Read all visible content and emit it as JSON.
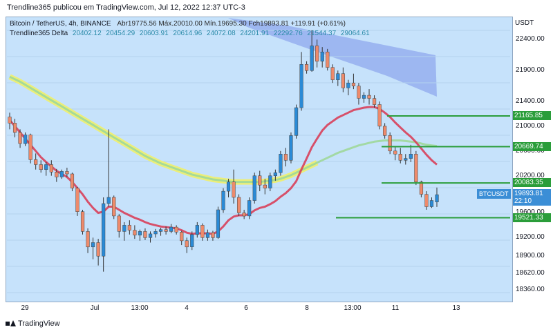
{
  "header": {
    "text": "Trendline365 publicou em TradingView.com, Jul 12, 2022 12:37 UTC-3"
  },
  "legend": {
    "symbol_line": "Bitcoin / TetherUS, 4h, BINANCE",
    "ohlc": "Abr19775.56  Máx.20010.00  Mín.19695.30  Fch19893.81  +119.91 (+0.61%)",
    "indicator_name": "Trendline365 Delta",
    "indicator_values": [
      "20402.12",
      "20454.29",
      "20603.91",
      "20614.96",
      "24072.08",
      "24201.91",
      "22292.76",
      "21544.37",
      "29064.61"
    ]
  },
  "axis": {
    "currency": "USDT",
    "yticks": [
      "22400.00",
      "21900.00",
      "21400.00",
      "21000.00",
      "20600.00",
      "20200.00",
      "19600.00",
      "19200.00",
      "18900.00",
      "18620.00",
      "18360.00"
    ],
    "xticks": [
      "29",
      "Jul",
      "13:00",
      "4",
      "6",
      "8",
      "13:00",
      "11",
      "13"
    ]
  },
  "levels": [
    {
      "label": "21165.85",
      "color": "#2a9d3a"
    },
    {
      "label": "20669.74",
      "color": "#2a9d3a"
    },
    {
      "label": "20083.35",
      "color": "#2a9d3a"
    },
    {
      "label": "19521.33",
      "color": "#2a9d3a"
    }
  ],
  "last_price": {
    "symbol": "BTCUSDT",
    "price": "19893.81",
    "countdown": "22:10",
    "color": "#3b8ed6"
  },
  "footer": {
    "brand": "TradingView"
  },
  "chart_data": {
    "type": "candlestick",
    "ylim": [
      18200,
      22750
    ],
    "up_color": "#2a8ad6",
    "down_color": "#ee8a6b",
    "candles": [
      [
        21150,
        21220,
        20950,
        21050
      ],
      [
        21050,
        21120,
        20820,
        20900
      ],
      [
        20900,
        20950,
        20650,
        20720
      ],
      [
        20720,
        20900,
        20680,
        20860
      ],
      [
        20860,
        20880,
        20400,
        20460
      ],
      [
        20460,
        20560,
        20300,
        20380
      ],
      [
        20380,
        20450,
        20250,
        20300
      ],
      [
        20300,
        20420,
        20200,
        20380
      ],
      [
        20380,
        20450,
        20200,
        20260
      ],
      [
        20260,
        20310,
        20100,
        20180
      ],
      [
        20180,
        20300,
        20150,
        20270
      ],
      [
        20270,
        20330,
        20180,
        20230
      ],
      [
        20230,
        20250,
        19950,
        20000
      ],
      [
        20000,
        20020,
        19550,
        19620
      ],
      [
        19620,
        19650,
        19250,
        19300
      ],
      [
        19300,
        19350,
        18950,
        19050
      ],
      [
        19050,
        19200,
        18850,
        19120
      ],
      [
        19120,
        19180,
        18750,
        18900
      ],
      [
        18900,
        19850,
        18650,
        19750
      ],
      [
        19750,
        20950,
        19700,
        19850
      ],
      [
        19850,
        19880,
        19500,
        19550
      ],
      [
        19550,
        19580,
        19200,
        19300
      ],
      [
        19300,
        19450,
        19150,
        19400
      ],
      [
        19400,
        19480,
        19250,
        19320
      ],
      [
        19320,
        19400,
        19180,
        19240
      ],
      [
        19240,
        19330,
        19150,
        19300
      ],
      [
        19300,
        19350,
        19160,
        19200
      ],
      [
        19200,
        19300,
        19120,
        19260
      ],
      [
        19260,
        19340,
        19200,
        19300
      ],
      [
        19300,
        19360,
        19230,
        19330
      ],
      [
        19330,
        19380,
        19250,
        19300
      ],
      [
        19300,
        19420,
        19270,
        19370
      ],
      [
        19370,
        19400,
        19250,
        19290
      ],
      [
        19290,
        19310,
        19080,
        19150
      ],
      [
        19150,
        19200,
        18950,
        19050
      ],
      [
        19050,
        19300,
        19000,
        19250
      ],
      [
        19250,
        19450,
        19200,
        19400
      ],
      [
        19400,
        19430,
        19150,
        19200
      ],
      [
        19200,
        19330,
        19150,
        19280
      ],
      [
        19280,
        19310,
        19150,
        19200
      ],
      [
        19200,
        19700,
        19180,
        19650
      ],
      [
        19650,
        20000,
        19600,
        19950
      ],
      [
        19950,
        20150,
        19850,
        20100
      ],
      [
        20100,
        20300,
        19750,
        19850
      ],
      [
        19850,
        19900,
        19550,
        19600
      ],
      [
        19600,
        19650,
        19500,
        19550
      ],
      [
        19550,
        19850,
        19500,
        19800
      ],
      [
        19800,
        20250,
        19750,
        20200
      ],
      [
        20200,
        20280,
        19950,
        20050
      ],
      [
        20050,
        20150,
        19900,
        20000
      ],
      [
        20000,
        20250,
        19950,
        20200
      ],
      [
        20200,
        20300,
        20120,
        20250
      ],
      [
        20250,
        20600,
        20200,
        20550
      ],
      [
        20550,
        20650,
        20350,
        20450
      ],
      [
        20450,
        20900,
        20400,
        20850
      ],
      [
        20850,
        21350,
        20800,
        21300
      ],
      [
        21300,
        22200,
        21250,
        22000
      ],
      [
        22000,
        22050,
        21850,
        21900
      ],
      [
        21900,
        22550,
        21880,
        22300
      ],
      [
        22300,
        22400,
        21950,
        22050
      ],
      [
        22050,
        22280,
        21950,
        22200
      ],
      [
        22200,
        22250,
        21900,
        21950
      ],
      [
        21950,
        22000,
        21700,
        21750
      ],
      [
        21750,
        21900,
        21650,
        21850
      ],
      [
        21850,
        21950,
        21550,
        21620
      ],
      [
        21620,
        21750,
        21500,
        21700
      ],
      [
        21700,
        21850,
        21600,
        21650
      ],
      [
        21650,
        21700,
        21350,
        21450
      ],
      [
        21450,
        21550,
        21380,
        21500
      ],
      [
        21500,
        21600,
        21350,
        21450
      ],
      [
        21450,
        21500,
        21300,
        21350
      ],
      [
        21350,
        21400,
        20950,
        21000
      ],
      [
        21000,
        21050,
        20800,
        20850
      ],
      [
        20850,
        20900,
        20550,
        20600
      ],
      [
        20600,
        20680,
        20450,
        20550
      ],
      [
        20550,
        20650,
        20400,
        20450
      ],
      [
        20450,
        20550,
        20380,
        20480
      ],
      [
        20480,
        20700,
        20420,
        20550
      ],
      [
        20550,
        20600,
        20050,
        20100
      ],
      [
        20100,
        20120,
        19850,
        19900
      ],
      [
        19900,
        19950,
        19650,
        19700
      ],
      [
        19700,
        19850,
        19680,
        19800
      ],
      [
        19775.56,
        20010,
        19695.3,
        19893.81
      ]
    ],
    "ma_red": [
      21100,
      21000,
      20900,
      20800,
      20700,
      20600,
      20500,
      20420,
      20350,
      20280,
      20230,
      20180,
      20100,
      20000,
      19900,
      19780,
      19680,
      19600,
      19620,
      19700,
      19700,
      19650,
      19600,
      19560,
      19520,
      19490,
      19450,
      19420,
      19400,
      19380,
      19370,
      19360,
      19350,
      19320,
      19280,
      19260,
      19270,
      19270,
      19270,
      19260,
      19300,
      19380,
      19480,
      19540,
      19560,
      19560,
      19580,
      19640,
      19680,
      19700,
      19740,
      19790,
      19860,
      19920,
      20000,
      20110,
      20300,
      20480,
      20660,
      20800,
      20930,
      21020,
      21080,
      21140,
      21180,
      21220,
      21260,
      21280,
      21300,
      21310,
      21310,
      21280,
      21220,
      21150,
      21060,
      20980,
      20900,
      20830,
      20740,
      20640,
      20540,
      20450,
      20380
    ],
    "ma_green": [
      21800,
      21760,
      21720,
      21670,
      21620,
      21570,
      21520,
      21470,
      21420,
      21370,
      21320,
      21270,
      21220,
      21170,
      21120,
      21070,
      21020,
      20970,
      20920,
      20870,
      20820,
      20770,
      20720,
      20670,
      20620,
      20570,
      20520,
      20480,
      20440,
      20400,
      20370,
      20340,
      20310,
      20280,
      20250,
      20220,
      20200,
      20180,
      20160,
      20140,
      20130,
      20120,
      20110,
      20100,
      20100,
      20100,
      20100,
      20100,
      20100,
      20110,
      20120,
      20130,
      20150,
      20180,
      20210,
      20250,
      20290,
      20330,
      20370,
      20410,
      20450,
      20490,
      20530,
      20570,
      20600,
      20630,
      20660,
      20690,
      20710,
      20730,
      20750,
      20760,
      20770,
      20770,
      20770,
      20770,
      20760,
      20750,
      20740,
      20720,
      20700,
      20690,
      20680
    ]
  }
}
